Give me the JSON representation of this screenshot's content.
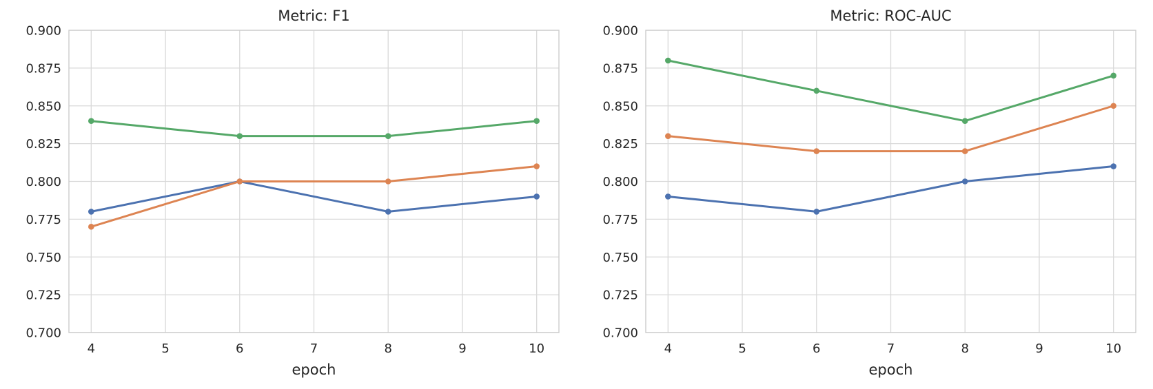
{
  "figure": {
    "background": "#ffffff",
    "text_color": "#262626",
    "grid_color": "#d9d9d9",
    "spine_color": "#cccccc"
  },
  "chart_data": [
    {
      "type": "line",
      "title": "Metric: F1",
      "xlabel": "epoch",
      "ylabel": "",
      "x": [
        4,
        6,
        8,
        10
      ],
      "xticks": [
        4,
        5,
        6,
        7,
        8,
        9,
        10
      ],
      "yticks": [
        "0.700",
        "0.725",
        "0.750",
        "0.775",
        "0.800",
        "0.825",
        "0.850",
        "0.875",
        "0.900"
      ],
      "xlim": [
        3.7,
        10.3
      ],
      "ylim": [
        0.7,
        0.9
      ],
      "grid": true,
      "legend": "none",
      "series": [
        {
          "name": "series-blue",
          "color": "#4C72B0",
          "values": [
            0.78,
            0.8,
            0.78,
            0.79
          ]
        },
        {
          "name": "series-orange",
          "color": "#DD8452",
          "values": [
            0.77,
            0.8,
            0.8,
            0.81
          ]
        },
        {
          "name": "series-green",
          "color": "#55A868",
          "values": [
            0.84,
            0.83,
            0.83,
            0.84
          ]
        }
      ]
    },
    {
      "type": "line",
      "title": "Metric: ROC-AUC",
      "xlabel": "epoch",
      "ylabel": "",
      "x": [
        4,
        6,
        8,
        10
      ],
      "xticks": [
        4,
        5,
        6,
        7,
        8,
        9,
        10
      ],
      "yticks": [
        "0.700",
        "0.725",
        "0.750",
        "0.775",
        "0.800",
        "0.825",
        "0.850",
        "0.875",
        "0.900"
      ],
      "xlim": [
        3.7,
        10.3
      ],
      "ylim": [
        0.7,
        0.9
      ],
      "grid": true,
      "legend": "none",
      "series": [
        {
          "name": "series-blue",
          "color": "#4C72B0",
          "values": [
            0.79,
            0.78,
            0.8,
            0.81
          ]
        },
        {
          "name": "series-orange",
          "color": "#DD8452",
          "values": [
            0.83,
            0.82,
            0.82,
            0.85
          ]
        },
        {
          "name": "series-green",
          "color": "#55A868",
          "values": [
            0.88,
            0.86,
            0.84,
            0.87
          ]
        }
      ]
    }
  ]
}
